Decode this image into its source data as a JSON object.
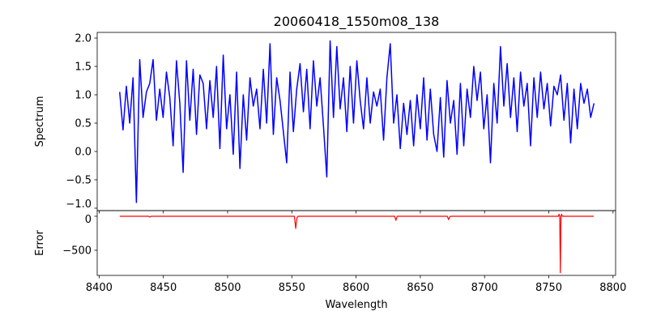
{
  "chart_data": [
    {
      "type": "line",
      "title": "20060418_1550m08_138",
      "xlabel": "",
      "ylabel": "Spectrum",
      "xlim": [
        8398.5,
        8802
      ],
      "ylim": [
        -1.043,
        2.1
      ],
      "yticks": [
        -1.0,
        -0.5,
        0.0,
        0.5,
        1.0,
        1.5,
        2.0
      ],
      "ytick_labels": [
        "−1.0",
        "−0.5",
        "0.0",
        "0.5",
        "1.0",
        "1.5",
        "2.0"
      ],
      "grid": false,
      "series": [
        {
          "name": "Spectrum",
          "color": "#0000ff",
          "x_start": 8416,
          "x_step": 2.6,
          "values": [
            1.05,
            0.38,
            1.15,
            0.5,
            1.3,
            -0.9,
            1.62,
            0.6,
            1.05,
            1.2,
            1.62,
            0.55,
            1.1,
            0.6,
            1.4,
            0.95,
            0.1,
            1.6,
            0.85,
            -0.37,
            1.6,
            0.55,
            1.45,
            0.3,
            1.35,
            1.2,
            0.4,
            1.25,
            0.6,
            1.5,
            0.05,
            1.7,
            0.4,
            1.0,
            -0.05,
            1.4,
            -0.3,
            1.0,
            0.2,
            1.3,
            0.8,
            1.1,
            0.4,
            1.45,
            0.5,
            1.9,
            0.3,
            1.3,
            0.9,
            0.35,
            -0.2,
            1.4,
            0.35,
            1.1,
            1.55,
            0.7,
            1.45,
            0.4,
            1.6,
            0.8,
            1.3,
            0.45,
            -0.45,
            1.95,
            0.6,
            1.85,
            0.75,
            1.3,
            0.35,
            1.5,
            0.5,
            1.6,
            0.9,
            0.4,
            1.3,
            0.5,
            1.05,
            0.8,
            1.1,
            0.2,
            1.3,
            1.9,
            0.5,
            1.0,
            0.05,
            0.85,
            0.3,
            0.9,
            0.1,
            1.0,
            0.4,
            1.3,
            0.2,
            1.1,
            0.3,
            0.0,
            0.95,
            -0.1,
            1.25,
            0.5,
            0.9,
            -0.05,
            1.2,
            0.1,
            1.1,
            0.6,
            1.5,
            0.9,
            1.4,
            0.4,
            1.0,
            -0.2,
            1.2,
            0.5,
            1.85,
            0.8,
            1.55,
            0.6,
            1.3,
            0.35,
            1.4,
            0.8,
            1.2,
            0.1,
            1.3,
            0.6,
            1.4,
            0.75,
            1.2,
            0.45,
            1.15,
            1.0,
            1.35,
            0.55,
            1.2,
            0.15,
            1.1,
            0.4,
            1.2,
            0.85,
            1.1,
            0.6,
            0.85
          ]
        }
      ]
    },
    {
      "type": "line",
      "title": "",
      "xlabel": "Wavelength",
      "ylabel": "Error",
      "xlim": [
        8398.5,
        8802
      ],
      "ylim": [
        -869,
        83
      ],
      "xticks": [
        8400,
        8450,
        8500,
        8550,
        8600,
        8650,
        8700,
        8750,
        8800
      ],
      "xtick_labels": [
        "8400",
        "8450",
        "8500",
        "8550",
        "8600",
        "8650",
        "8700",
        "8750",
        "8800"
      ],
      "yticks": [
        0,
        -500
      ],
      "ytick_labels": [
        "0",
        "−500"
      ],
      "grid": false,
      "series": [
        {
          "name": "Error",
          "color": "#ff0000",
          "points": [
            [
              8416,
              0
            ],
            [
              8438.5,
              0
            ],
            [
              8439.5,
              -12
            ],
            [
              8440.5,
              0
            ],
            [
              8552,
              0
            ],
            [
              8553,
              -180
            ],
            [
              8554,
              -20
            ],
            [
              8555,
              0
            ],
            [
              8630,
              0
            ],
            [
              8631,
              -60
            ],
            [
              8632,
              0
            ],
            [
              8671,
              0
            ],
            [
              8672,
              -50
            ],
            [
              8673,
              -5
            ],
            [
              8674,
              0
            ],
            [
              8757.5,
              0
            ],
            [
              8758,
              30
            ],
            [
              8758.5,
              0
            ],
            [
              8759,
              -830
            ],
            [
              8759.5,
              0
            ],
            [
              8760,
              30
            ],
            [
              8760.5,
              0
            ],
            [
              8785,
              0
            ]
          ]
        }
      ]
    }
  ]
}
